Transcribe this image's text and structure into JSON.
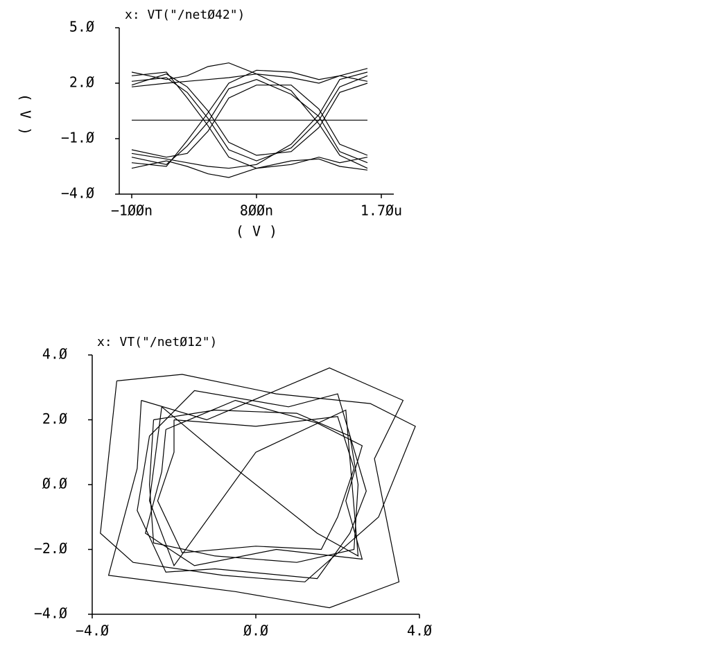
{
  "chart_data": [
    {
      "type": "line",
      "title": "x: VT(\"/netØ42\")",
      "ylabel": "( V )",
      "xlabel": "( V )",
      "x": [
        -1e-07,
        1.5e-07,
        3e-07,
        4.5e-07,
        6e-07,
        8e-07,
        1.05e-06,
        1.25e-06,
        1.4e-06,
        1.6e-06
      ],
      "series": [
        {
          "color": "#000000",
          "values": [
            2.1,
            2.3,
            1.5,
            0.1,
            -1.6,
            -2.2,
            -1.5,
            0,
            1.8,
            2.4
          ]
        },
        {
          "color": "#000000",
          "values": [
            -2.0,
            -2.4,
            -1.4,
            -0.1,
            1.7,
            2.2,
            1.4,
            0.2,
            -1.7,
            -2.3
          ]
        },
        {
          "color": "#000000",
          "values": [
            1.8,
            2.0,
            2.1,
            2.2,
            2.3,
            2.5,
            1.6,
            -0.2,
            -1.9,
            -2.6
          ]
        },
        {
          "color": "#000000",
          "values": [
            -1.8,
            -2.1,
            -2.3,
            -2.5,
            -2.6,
            -2.4,
            -1.3,
            0.3,
            2.2,
            2.6
          ]
        },
        {
          "color": "#000000",
          "values": [
            2.6,
            2.2,
            2.4,
            2.9,
            3.1,
            2.5,
            2.3,
            2.0,
            2.4,
            2.8
          ]
        },
        {
          "color": "#000000",
          "values": [
            -2.6,
            -2.2,
            -2.5,
            -2.9,
            -3.1,
            -2.6,
            -2.2,
            -2.1,
            -2.5,
            -2.7
          ]
        },
        {
          "color": "#000000",
          "values": [
            2.4,
            2.6,
            1.2,
            -0.3,
            -2.0,
            -2.6,
            -2.4,
            -2.0,
            -2.3,
            -2.0
          ]
        },
        {
          "color": "#000000",
          "values": [
            -2.3,
            -2.5,
            -1.1,
            0.4,
            2.0,
            2.7,
            2.6,
            2.2,
            2.4,
            2.1
          ]
        },
        {
          "color": "#000000",
          "values": [
            1.9,
            2.5,
            1.8,
            0.5,
            -1.2,
            -1.9,
            -1.7,
            -0.4,
            1.5,
            2.0
          ]
        },
        {
          "color": "#000000",
          "values": [
            -1.6,
            -2.0,
            -1.8,
            -0.6,
            1.2,
            1.9,
            1.9,
            0.6,
            -1.3,
            -1.9
          ]
        },
        {
          "color": "#000000",
          "values": [
            0,
            0,
            0,
            0,
            0,
            0,
            0,
            0,
            0,
            0
          ]
        }
      ],
      "xlim": [
        -1.9e-07,
        1.79e-06
      ],
      "xticks": [
        {
          "value": -1e-07,
          "label": "−1ØØn"
        },
        {
          "value": 8e-07,
          "label": "8ØØn"
        },
        {
          "value": 1.7e-06,
          "label": "1.7Øu"
        }
      ],
      "ylim": [
        -4,
        5
      ],
      "yticks": [
        {
          "value": 5,
          "label": "5.Ø"
        },
        {
          "value": 2,
          "label": "2.Ø"
        },
        {
          "value": -1,
          "label": "−1.Ø"
        },
        {
          "value": -4,
          "label": "−4.Ø"
        }
      ]
    },
    {
      "type": "line",
      "title": "x: VT(\"/netØ12\")",
      "series": [
        {
          "color": "#000000",
          "x": [
            -2.5,
            -1,
            1,
            2.3,
            2.5,
            2.4,
            1,
            -1,
            -2.5,
            -2.6,
            -2.5
          ],
          "values": [
            2,
            2.3,
            2.2,
            1.5,
            0,
            -2,
            -2.4,
            -2.2,
            -1.8,
            0,
            2
          ]
        },
        {
          "color": "#000000",
          "x": [
            -2.2,
            -0.5,
            1.5,
            2.6,
            2.2,
            2.6,
            0.5,
            -1.5,
            -2.7,
            -2.3,
            -2.2
          ],
          "values": [
            1.7,
            2.6,
            1.9,
            1.2,
            -0.5,
            -2.3,
            -2.0,
            -2.5,
            -1.5,
            0.4,
            1.7
          ]
        },
        {
          "color": "#000000",
          "x": [
            -3.4,
            -1.8,
            0.5,
            2.8,
            3.9,
            3.0,
            1.2,
            -0.8,
            -3.0,
            -3.8,
            -3.4
          ],
          "values": [
            3.2,
            3.4,
            2.8,
            2.5,
            1.8,
            -1.0,
            -3.0,
            -2.8,
            -2.4,
            -1.5,
            3.2
          ]
        },
        {
          "color": "#000000",
          "x": [
            -2.8,
            -1.2,
            1.8,
            3.6,
            2.9,
            3.5,
            1.8,
            -0.5,
            -3.6,
            -2.9,
            -2.8
          ],
          "values": [
            2.6,
            2.0,
            3.6,
            2.6,
            0.8,
            -3.0,
            -3.8,
            -3.3,
            -2.8,
            0.5,
            2.6
          ]
        },
        {
          "color": "#000000",
          "x": [
            -2.0,
            0,
            2.0,
            2.4,
            2.0,
            1.6,
            0,
            -1.8,
            -2.4,
            -2.0,
            -2.0
          ],
          "values": [
            2.0,
            1.8,
            2.1,
            0.5,
            -1.0,
            -2.0,
            -1.9,
            -2.1,
            -0.5,
            1.0,
            2.0
          ]
        },
        {
          "color": "#000000",
          "x": [
            -2.6,
            -1.5,
            0.8,
            2.0,
            2.7,
            2.3,
            1.5,
            -1.0,
            -2.2,
            -2.9,
            -2.6
          ],
          "values": [
            1.5,
            2.9,
            2.4,
            2.8,
            -0.2,
            -1.5,
            -2.9,
            -2.6,
            -2.7,
            -0.8,
            1.5
          ]
        },
        {
          "color": "#000000",
          "x": [
            -2.3,
            -0.5,
            1.5,
            2.5,
            2.2,
            0,
            -2.0,
            -2.6,
            -2.3
          ],
          "values": [
            2.4,
            0.5,
            -1.5,
            -2.2,
            2.3,
            1.0,
            -2.5,
            -0.5,
            2.4
          ]
        }
      ],
      "xlim": [
        -4,
        4
      ],
      "xticks": [
        {
          "value": -4,
          "label": "−4.Ø"
        },
        {
          "value": 0,
          "label": "Ø.Ø"
        },
        {
          "value": 4,
          "label": "4.Ø"
        }
      ],
      "ylim": [
        -4,
        4
      ],
      "yticks": [
        {
          "value": 4,
          "label": "4.Ø"
        },
        {
          "value": 2,
          "label": "2.Ø"
        },
        {
          "value": 0,
          "label": "Ø.Ø"
        },
        {
          "value": -2,
          "label": "−2.Ø"
        },
        {
          "value": -4,
          "label": "−4.Ø"
        }
      ]
    }
  ]
}
